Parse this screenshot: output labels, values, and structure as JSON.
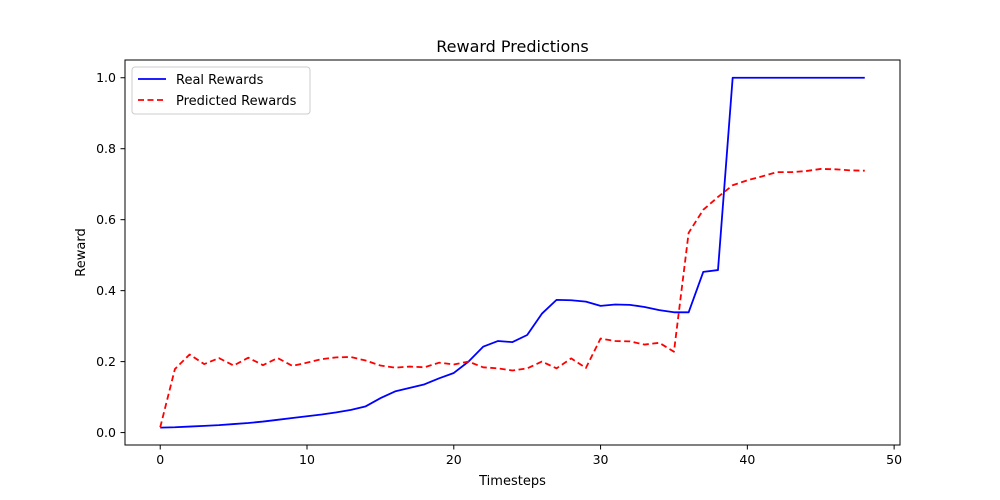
{
  "chart_data": {
    "type": "line",
    "title": "Reward Predictions",
    "xlabel": "Timesteps",
    "ylabel": "Reward",
    "xlim": [
      -2.4,
      50.4
    ],
    "ylim": [
      -0.035,
      1.05
    ],
    "xticks": [
      0,
      10,
      20,
      30,
      40,
      50
    ],
    "xtick_labels": [
      "0",
      "10",
      "20",
      "30",
      "40",
      "50"
    ],
    "yticks": [
      0.0,
      0.2,
      0.4,
      0.6,
      0.8,
      1.0
    ],
    "ytick_labels": [
      "0.0",
      "0.2",
      "0.4",
      "0.6",
      "0.8",
      "1.0"
    ],
    "grid": false,
    "legend_position": "top-left",
    "x": [
      0,
      1,
      2,
      3,
      4,
      5,
      6,
      7,
      8,
      9,
      10,
      11,
      12,
      13,
      14,
      15,
      16,
      17,
      18,
      19,
      20,
      21,
      22,
      23,
      24,
      25,
      26,
      27,
      28,
      29,
      30,
      31,
      32,
      33,
      34,
      35,
      36,
      37,
      38,
      39,
      40,
      41,
      42,
      43,
      44,
      45,
      46,
      47,
      48
    ],
    "series": [
      {
        "name": "Real Rewards",
        "color": "#0000ff",
        "style": "solid",
        "values": [
          0.014,
          0.015,
          0.017,
          0.019,
          0.021,
          0.024,
          0.027,
          0.031,
          0.036,
          0.041,
          0.046,
          0.051,
          0.057,
          0.064,
          0.074,
          0.097,
          0.116,
          0.126,
          0.136,
          0.153,
          0.168,
          0.2,
          0.242,
          0.258,
          0.255,
          0.275,
          0.335,
          0.374,
          0.373,
          0.369,
          0.357,
          0.361,
          0.36,
          0.354,
          0.345,
          0.339,
          0.339,
          0.453,
          0.458,
          1.0,
          1.0,
          1.0,
          1.0,
          1.0,
          1.0,
          1.0,
          1.0,
          1.0,
          1.0
        ]
      },
      {
        "name": "Predicted Rewards",
        "color": "#ff0000",
        "style": "dashed",
        "values": [
          0.015,
          0.179,
          0.22,
          0.193,
          0.21,
          0.189,
          0.211,
          0.19,
          0.21,
          0.188,
          0.197,
          0.207,
          0.212,
          0.213,
          0.203,
          0.189,
          0.183,
          0.186,
          0.184,
          0.197,
          0.192,
          0.2,
          0.184,
          0.181,
          0.175,
          0.181,
          0.2,
          0.181,
          0.209,
          0.182,
          0.265,
          0.258,
          0.257,
          0.248,
          0.253,
          0.228,
          0.563,
          0.628,
          0.664,
          0.697,
          0.711,
          0.722,
          0.734,
          0.734,
          0.737,
          0.743,
          0.742,
          0.739,
          0.738
        ]
      }
    ]
  }
}
